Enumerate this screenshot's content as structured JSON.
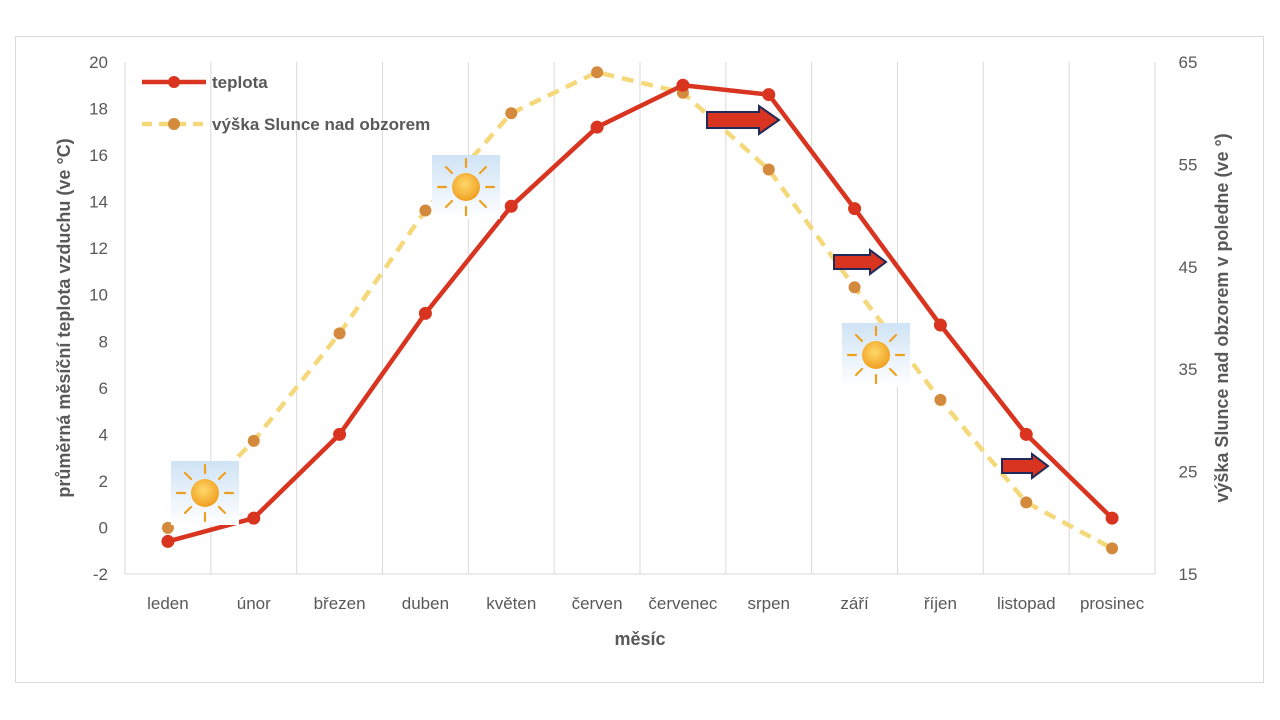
{
  "chart_data": {
    "type": "line",
    "title": "",
    "categories": [
      "leden",
      "únor",
      "březen",
      "duben",
      "květen",
      "červen",
      "červenec",
      "srpen",
      "září",
      "říjen",
      "listopad",
      "prosinec"
    ],
    "xlabel": "měsíc",
    "ylabel_left": "průměrná měsíční teplota vzduchu (ve °C)",
    "ylabel_right": "výška Slunce nad obzorem v poledne (ve °)",
    "y_left": {
      "min": -2,
      "max": 20,
      "step": 2
    },
    "y_right": {
      "min": 15,
      "max": 65,
      "step": 10
    },
    "grid": "vertical",
    "legend_position": "top-left",
    "series": [
      {
        "name": "teplota",
        "axis": "left",
        "color": "#d8341f",
        "style": "solid",
        "values": [
          -0.6,
          0.4,
          4.0,
          9.2,
          13.8,
          17.2,
          19.0,
          18.6,
          13.7,
          8.7,
          4.0,
          0.4
        ]
      },
      {
        "name": "výška Slunce nad obzorem",
        "axis": "right",
        "color": "#f5d87a",
        "marker_color": "#d48a3c",
        "style": "dashed",
        "values": [
          19.5,
          28.0,
          38.5,
          50.5,
          60.0,
          64.0,
          62.0,
          54.5,
          43.0,
          32.0,
          22.0,
          17.5
        ]
      }
    ],
    "annotations": {
      "sun_icons": [
        "sun-icon",
        "sun-icon",
        "sun-icon"
      ],
      "arrows": [
        "right-arrow-icon",
        "right-arrow-icon",
        "right-arrow-icon"
      ]
    }
  }
}
